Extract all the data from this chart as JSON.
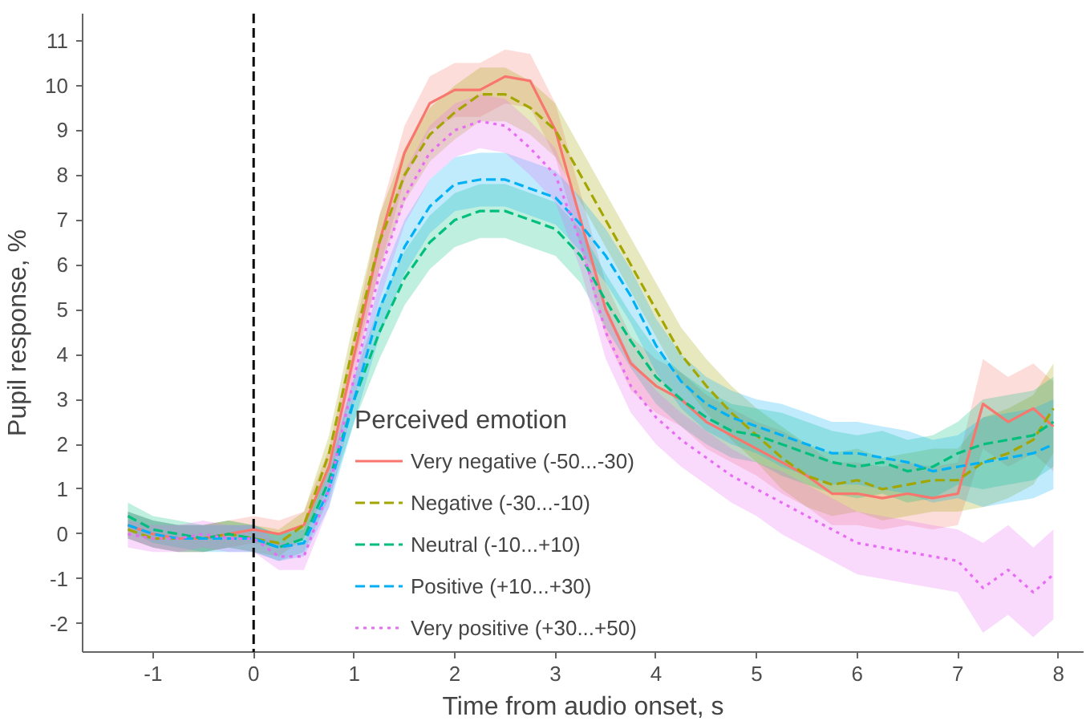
{
  "chart_data": {
    "type": "line",
    "xlabel": "Time from audio onset, s",
    "ylabel": "Pupil response, %",
    "legend_title": "Perceived emotion",
    "legend": "bottom",
    "grid": false,
    "xlim": [
      -1.7,
      8.25
    ],
    "ylim": [
      -2.63,
      11.6
    ],
    "xticks": [
      -1,
      0,
      1,
      2,
      3,
      4,
      5,
      6,
      7,
      8
    ],
    "yticks": [
      -2,
      -1,
      0,
      1,
      2,
      3,
      4,
      5,
      6,
      7,
      8,
      9,
      10,
      11
    ],
    "x": [
      -1.25,
      -1,
      -0.75,
      -0.5,
      -0.25,
      0,
      0.25,
      0.5,
      0.75,
      1.0,
      1.25,
      1.5,
      1.75,
      2.0,
      2.25,
      2.5,
      2.75,
      3.0,
      3.25,
      3.5,
      3.75,
      4.0,
      4.25,
      4.5,
      4.75,
      5.0,
      5.25,
      5.5,
      5.75,
      6.0,
      6.25,
      6.5,
      6.75,
      7.0,
      7.25,
      7.5,
      7.75,
      7.95
    ],
    "ref_lines": [
      {
        "axis": "x",
        "value": 0,
        "color": "#000000",
        "line_style": "dashed"
      }
    ],
    "series": [
      {
        "name": "Very negative (-50...-30)",
        "color": "#F8766D",
        "line_style": "solid",
        "values": [
          0.2,
          0,
          -0.1,
          -0.1,
          0,
          0.1,
          0,
          0.2,
          1.5,
          4.0,
          6.5,
          8.5,
          9.6,
          9.9,
          9.9,
          10.2,
          10.1,
          9.0,
          7.0,
          5.0,
          3.8,
          3.3,
          3.0,
          2.5,
          2.2,
          1.9,
          1.6,
          1.3,
          0.9,
          0.9,
          0.8,
          0.9,
          0.8,
          0.9,
          2.9,
          2.5,
          2.8,
          2.4
        ],
        "lower": [
          -0.1,
          -0.3,
          -0.4,
          -0.4,
          -0.3,
          -0.2,
          -0.3,
          -0.1,
          1.1,
          3.5,
          5.9,
          7.9,
          9.0,
          9.3,
          9.3,
          9.6,
          9.5,
          8.4,
          6.4,
          4.4,
          3.2,
          2.7,
          2.4,
          1.9,
          1.6,
          1.3,
          0.9,
          0.6,
          0.2,
          0.2,
          0.1,
          0.2,
          0.1,
          0.2,
          1.9,
          1.5,
          1.8,
          1.4
        ],
        "upper": [
          0.5,
          0.3,
          0.2,
          0.2,
          0.3,
          0.4,
          0.3,
          0.5,
          1.9,
          4.5,
          7.1,
          9.1,
          10.2,
          10.5,
          10.5,
          10.8,
          10.7,
          9.6,
          7.6,
          5.6,
          4.4,
          3.9,
          3.6,
          3.1,
          2.8,
          2.5,
          2.3,
          2.0,
          1.6,
          1.6,
          1.5,
          1.6,
          1.5,
          1.6,
          3.9,
          3.5,
          3.8,
          3.4
        ]
      },
      {
        "name": "Negative (-30...-10)",
        "color": "#A3A500",
        "line_style": "dashed",
        "values": [
          0.1,
          -0.1,
          -0.1,
          -0.1,
          0,
          -0.1,
          -0.2,
          0.2,
          1.8,
          4.3,
          6.5,
          8.0,
          8.9,
          9.4,
          9.8,
          9.8,
          9.5,
          9.0,
          8.0,
          7.0,
          6.0,
          5.0,
          4.0,
          3.3,
          2.7,
          2.2,
          1.7,
          1.3,
          1.1,
          1.2,
          1.0,
          1.1,
          1.2,
          1.2,
          1.6,
          1.8,
          2.1,
          2.8
        ],
        "lower": [
          -0.1,
          -0.3,
          -0.4,
          -0.4,
          -0.3,
          -0.4,
          -0.5,
          -0.1,
          1.4,
          3.8,
          5.9,
          7.4,
          8.3,
          8.8,
          9.2,
          9.2,
          8.9,
          8.4,
          7.4,
          6.4,
          5.4,
          4.4,
          3.4,
          2.7,
          2.1,
          1.6,
          1.0,
          0.6,
          0.4,
          0.5,
          0.3,
          0.4,
          0.5,
          0.5,
          0.6,
          0.8,
          1.1,
          1.8
        ],
        "upper": [
          0.5,
          0.3,
          0.2,
          0.2,
          0.3,
          0.2,
          0.1,
          0.5,
          2.2,
          4.8,
          7.1,
          8.6,
          9.5,
          10.0,
          10.4,
          10.4,
          10.1,
          9.6,
          8.6,
          7.6,
          6.6,
          5.6,
          4.6,
          3.9,
          3.3,
          2.8,
          2.4,
          2.0,
          1.8,
          1.9,
          1.7,
          1.8,
          1.9,
          1.9,
          2.6,
          2.8,
          3.1,
          3.8
        ]
      },
      {
        "name": "Neutral (-10...+10)",
        "color": "#00BF7D",
        "line_style": "dashed",
        "values": [
          0.4,
          0.1,
          0,
          -0.1,
          0,
          -0.1,
          -0.3,
          -0.1,
          1.2,
          3.0,
          4.5,
          5.7,
          6.5,
          7.0,
          7.2,
          7.2,
          7.0,
          6.8,
          6.2,
          5.2,
          4.3,
          3.5,
          3.0,
          2.6,
          2.3,
          2.2,
          2.0,
          1.8,
          1.6,
          1.5,
          1.6,
          1.4,
          1.5,
          1.8,
          2.0,
          2.1,
          2.2,
          2.5
        ],
        "lower": [
          0.1,
          -0.2,
          -0.3,
          -0.4,
          -0.3,
          -0.4,
          -0.6,
          -0.4,
          0.8,
          2.5,
          3.9,
          5.1,
          5.9,
          6.4,
          6.6,
          6.6,
          6.4,
          6.2,
          5.6,
          4.6,
          3.7,
          2.9,
          2.4,
          2.0,
          1.7,
          1.6,
          1.3,
          1.1,
          0.9,
          0.8,
          0.9,
          0.7,
          0.8,
          1.1,
          1.0,
          1.1,
          1.2,
          1.5
        ],
        "upper": [
          0.7,
          0.4,
          0.3,
          0.2,
          0.3,
          0.2,
          0,
          0.2,
          1.6,
          3.5,
          5.1,
          6.3,
          7.1,
          7.6,
          7.8,
          7.8,
          7.6,
          7.4,
          6.8,
          5.8,
          4.9,
          4.1,
          3.6,
          3.2,
          2.9,
          2.8,
          2.7,
          2.5,
          2.3,
          2.2,
          2.3,
          2.1,
          2.2,
          2.5,
          3.0,
          3.1,
          3.2,
          3.5
        ]
      },
      {
        "name": "Positive (+10...+30)",
        "color": "#00B0F6",
        "line_style": "dashed",
        "values": [
          0.2,
          0,
          -0.1,
          -0.1,
          -0.1,
          -0.1,
          -0.3,
          -0.2,
          1.0,
          3.0,
          5.0,
          6.4,
          7.3,
          7.8,
          7.9,
          7.9,
          7.7,
          7.5,
          6.9,
          6.2,
          5.3,
          4.2,
          3.4,
          2.9,
          2.6,
          2.4,
          2.2,
          2.0,
          1.8,
          1.8,
          1.7,
          1.6,
          1.4,
          1.5,
          1.6,
          1.7,
          1.8,
          2.0
        ],
        "lower": [
          -0.1,
          -0.3,
          -0.4,
          -0.4,
          -0.4,
          -0.4,
          -0.6,
          -0.5,
          0.6,
          2.5,
          4.4,
          5.8,
          6.7,
          7.2,
          7.3,
          7.3,
          7.1,
          6.9,
          6.3,
          5.6,
          4.7,
          3.6,
          2.8,
          2.3,
          2.0,
          1.8,
          1.5,
          1.3,
          1.1,
          1.1,
          1.0,
          0.9,
          0.7,
          0.8,
          0.6,
          0.7,
          0.8,
          1.0
        ],
        "upper": [
          0.5,
          0.3,
          0.2,
          0.2,
          0.2,
          0.2,
          0,
          0.1,
          1.4,
          3.5,
          5.6,
          7.0,
          7.9,
          8.4,
          8.5,
          8.5,
          8.3,
          8.1,
          7.5,
          6.8,
          5.9,
          4.8,
          4.0,
          3.5,
          3.2,
          3.0,
          2.9,
          2.7,
          2.5,
          2.5,
          2.4,
          2.3,
          2.1,
          2.2,
          2.6,
          2.7,
          2.8,
          3.0
        ]
      },
      {
        "name": "Very positive (+30...+50)",
        "color": "#E76BF3",
        "line_style": "dotted",
        "values": [
          0,
          -0.1,
          -0.1,
          0,
          -0.1,
          -0.1,
          -0.5,
          -0.5,
          1.0,
          3.5,
          5.8,
          7.5,
          8.5,
          9.0,
          9.2,
          9.1,
          8.6,
          8.0,
          6.5,
          4.5,
          3.3,
          2.6,
          2.1,
          1.7,
          1.3,
          1.0,
          0.7,
          0.4,
          0.1,
          -0.2,
          -0.3,
          -0.4,
          -0.5,
          -0.6,
          -1.2,
          -0.8,
          -1.3,
          -0.9
        ],
        "lower": [
          -0.3,
          -0.4,
          -0.4,
          -0.3,
          -0.4,
          -0.4,
          -0.8,
          -0.8,
          0.6,
          3.0,
          5.2,
          6.9,
          7.9,
          8.4,
          8.6,
          8.5,
          8.0,
          7.4,
          5.9,
          3.9,
          2.7,
          2.0,
          1.5,
          1.1,
          0.7,
          0.4,
          0,
          -0.3,
          -0.6,
          -0.9,
          -1.0,
          -1.1,
          -1.2,
          -1.3,
          -2.2,
          -1.8,
          -2.3,
          -1.9
        ],
        "upper": [
          0.3,
          0.2,
          0.2,
          0.3,
          0.2,
          0.2,
          -0.2,
          -0.2,
          1.4,
          4.0,
          6.4,
          8.1,
          9.1,
          9.6,
          9.8,
          9.7,
          9.2,
          8.6,
          7.1,
          5.1,
          3.9,
          3.2,
          2.7,
          2.3,
          1.9,
          1.6,
          1.4,
          1.1,
          0.8,
          0.5,
          0.4,
          0.3,
          0.2,
          0.1,
          -0.2,
          0.2,
          -0.3,
          0.1
        ]
      }
    ]
  }
}
